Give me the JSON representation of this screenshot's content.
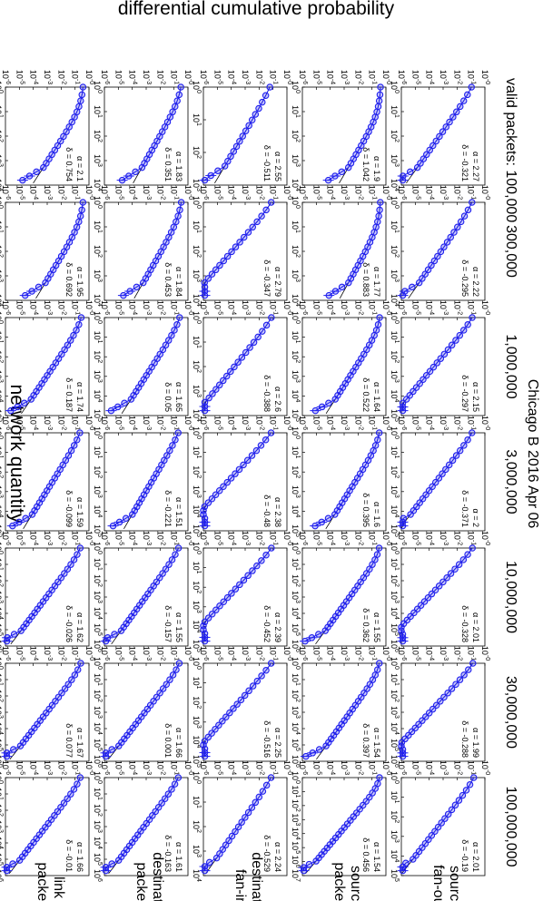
{
  "chart_data": {
    "type": "scatter",
    "title": "Chicago B 2016 Apr 06",
    "ylabel": "differential cumulative probability",
    "xlabel": "network quantity",
    "x_scale": "log",
    "y_scale": "log",
    "first_column_label": "valid packets: 100,000",
    "columns": [
      "100,000",
      "300,000",
      "1,000,000",
      "3,000,000",
      "10,000,000",
      "30,000,000",
      "100,000,000"
    ],
    "rows": [
      "source fan-out",
      "source packets",
      "destination fan-in",
      "destination packets",
      "link packets"
    ],
    "colors": {
      "points": "#2020ee",
      "fit": "#000000"
    },
    "xlim_decades": [
      [
        4,
        4,
        5,
        5,
        6,
        6,
        5
      ],
      [
        4,
        4,
        5,
        5,
        6,
        6,
        7
      ],
      [
        3,
        4,
        4,
        5,
        5,
        5,
        4
      ],
      [
        4,
        4,
        5,
        5,
        6,
        6,
        6
      ],
      [
        4,
        4,
        5,
        5,
        6,
        6,
        6
      ]
    ],
    "ylim_decades": [
      [
        6,
        6,
        6,
        6,
        6,
        6,
        6
      ],
      [
        6,
        6,
        6,
        6,
        6,
        6,
        6
      ],
      [
        6,
        6,
        6,
        6,
        6,
        6,
        6
      ],
      [
        6,
        6,
        6,
        6,
        6,
        6,
        6
      ],
      [
        6,
        6,
        6,
        6,
        6,
        6,
        6
      ]
    ],
    "panels": [
      [
        {
          "alpha": "2.27",
          "delta": "-0.321"
        },
        {
          "alpha": "2.22",
          "delta": "-0.295"
        },
        {
          "alpha": "2.15",
          "delta": "-0.297"
        },
        {
          "alpha": "2",
          "delta": "-0.371"
        },
        {
          "alpha": "2.01",
          "delta": "-0.328"
        },
        {
          "alpha": "1.99",
          "delta": "-0.288"
        },
        {
          "alpha": "2.01",
          "delta": "-0.19"
        }
      ],
      [
        {
          "alpha": "1.9",
          "delta": "1.042"
        },
        {
          "alpha": "1.77",
          "delta": "0.883"
        },
        {
          "alpha": "1.64",
          "delta": "0.522"
        },
        {
          "alpha": "1.6",
          "delta": "0.395"
        },
        {
          "alpha": "1.55",
          "delta": "0.362"
        },
        {
          "alpha": "1.54",
          "delta": "0.397"
        },
        {
          "alpha": "1.54",
          "delta": "0.456"
        }
      ],
      [
        {
          "alpha": "2.55",
          "delta": "-0.511"
        },
        {
          "alpha": "2.79",
          "delta": "-0.347"
        },
        {
          "alpha": "2.6",
          "delta": "-0.388"
        },
        {
          "alpha": "2.38",
          "delta": "-0.48"
        },
        {
          "alpha": "2.39",
          "delta": "-0.452"
        },
        {
          "alpha": "2.25",
          "delta": "-0.516"
        },
        {
          "alpha": "2.24",
          "delta": "-0.529"
        }
      ],
      [
        {
          "alpha": "1.83",
          "delta": "0.351"
        },
        {
          "alpha": "1.84",
          "delta": "0.453"
        },
        {
          "alpha": "1.65",
          "delta": "0.05"
        },
        {
          "alpha": "1.51",
          "delta": "-0.221"
        },
        {
          "alpha": "1.55",
          "delta": "-0.157"
        },
        {
          "alpha": "1.66",
          "delta": "0.001"
        },
        {
          "alpha": "1.61",
          "delta": "-0.163"
        }
      ],
      [
        {
          "alpha": "2.1",
          "delta": "0.754"
        },
        {
          "alpha": "1.95",
          "delta": "0.692"
        },
        {
          "alpha": "1.74",
          "delta": "0.187"
        },
        {
          "alpha": "1.59",
          "delta": "-0.099"
        },
        {
          "alpha": "1.62",
          "delta": "-0.026"
        },
        {
          "alpha": "1.67",
          "delta": "0.077"
        },
        {
          "alpha": "1.66",
          "delta": "-0.01"
        }
      ]
    ]
  }
}
